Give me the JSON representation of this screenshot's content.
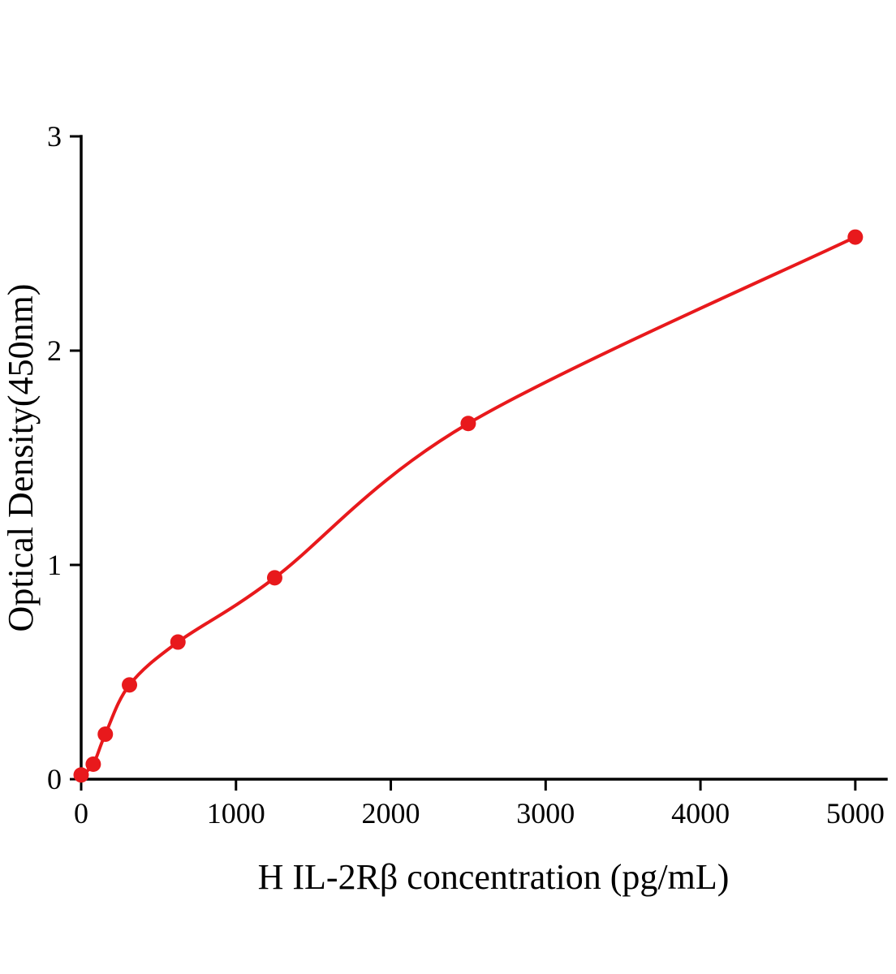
{
  "chart_data": {
    "type": "scatter",
    "x": [
      0,
      78,
      156,
      312,
      625,
      1250,
      2500,
      5000
    ],
    "y": [
      0.02,
      0.07,
      0.21,
      0.44,
      0.64,
      0.94,
      1.66,
      2.53
    ],
    "title": "",
    "xlabel": "H IL-2Rβ concentration (pg/mL)",
    "ylabel": "Optical Density(450nm)",
    "xlim": [
      0,
      5200
    ],
    "ylim": [
      0,
      3
    ],
    "x_ticks": [
      0,
      1000,
      2000,
      3000,
      4000,
      5000
    ],
    "y_ticks": [
      0,
      1,
      2,
      3
    ],
    "grid": false,
    "legend": false,
    "curve": "smooth fitted curve through points",
    "marker_color": "#e8191c",
    "line_color": "#e8191c",
    "axis_color": "#000000"
  }
}
